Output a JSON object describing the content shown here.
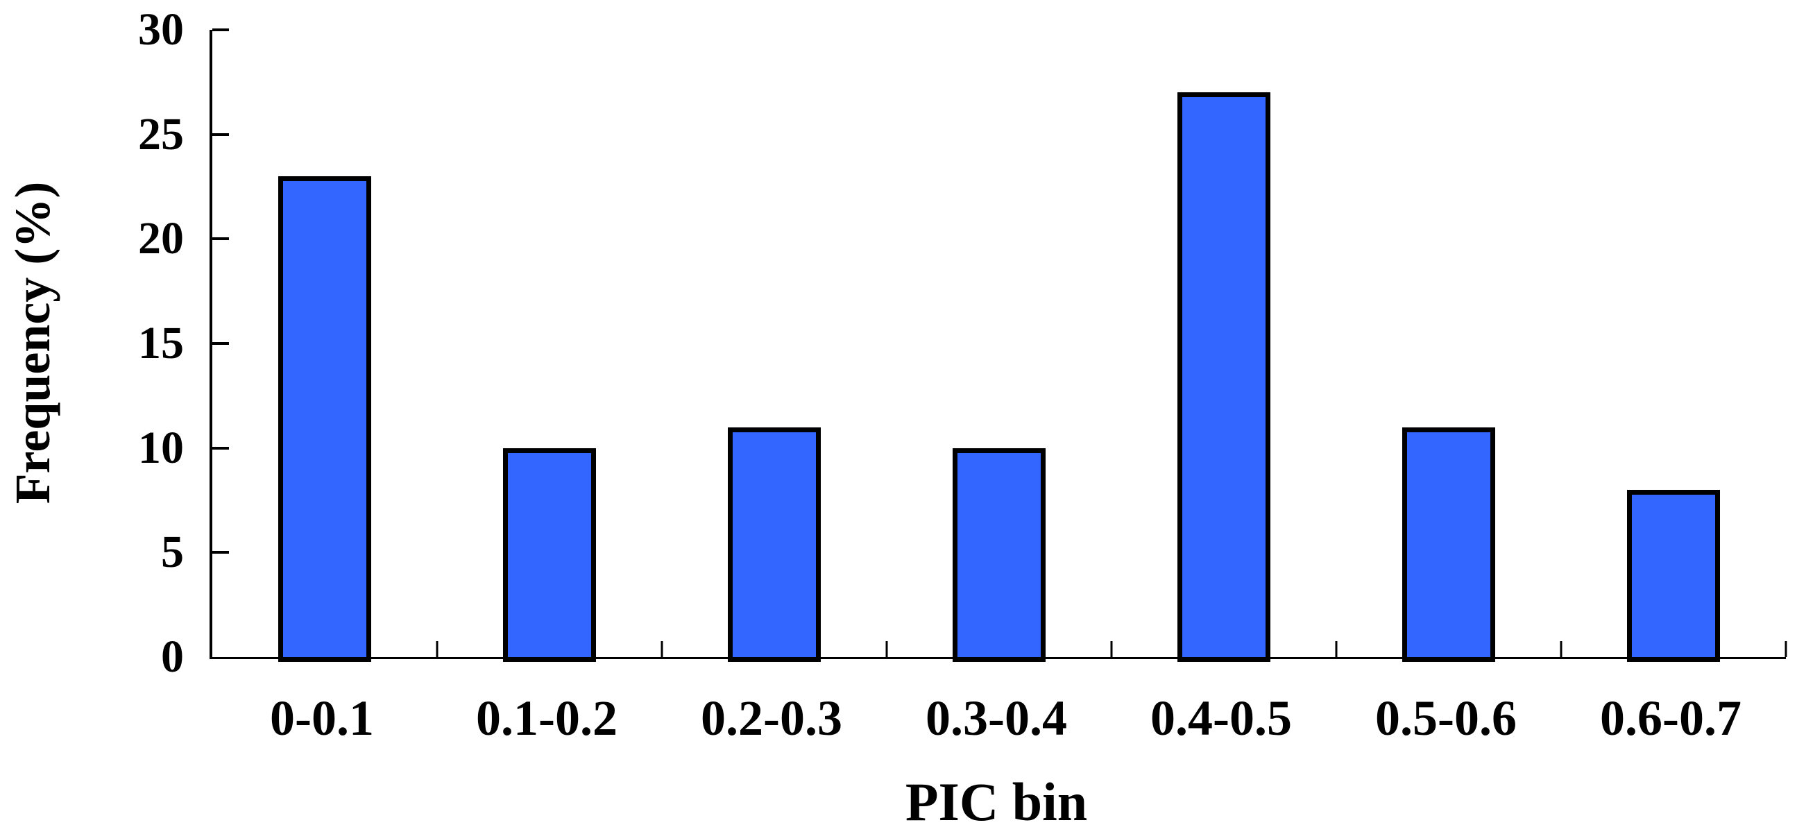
{
  "chart_data": {
    "type": "bar",
    "title": "",
    "xlabel": "PIC bin",
    "ylabel": "Frequency (%)",
    "categories": [
      "0-0.1",
      "0.1-0.2",
      "0.2-0.3",
      "0.3-0.4",
      "0.4-0.5",
      "0.5-0.6",
      "0.6-0.7"
    ],
    "values": [
      23,
      10,
      11,
      10,
      27,
      11,
      8
    ],
    "ylim": [
      0,
      30
    ],
    "yticks": [
      0,
      5,
      10,
      15,
      20,
      25,
      30
    ],
    "grid": false,
    "legend": false,
    "colors": {
      "bar_fill": "#3366ff",
      "bar_border": "#000000",
      "axis": "#000000",
      "text": "#000000"
    }
  }
}
